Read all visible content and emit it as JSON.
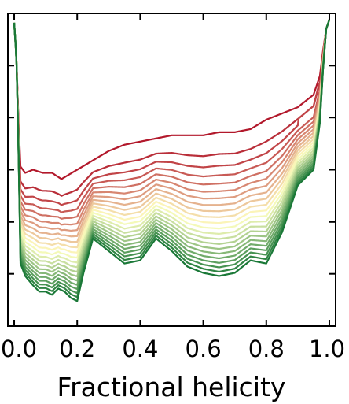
{
  "chart_data": {
    "type": "line",
    "title": "",
    "xlabel": "Fractional helicity",
    "ylabel": "",
    "xlim": [
      -0.02,
      1.02
    ],
    "ylim": [
      0,
      1
    ],
    "grid": false,
    "legend": "none",
    "x_ticks": [
      0.0,
      0.2,
      0.4,
      0.6,
      0.8,
      1.0
    ],
    "x_tick_labels": [
      "0.0",
      "0.2",
      "0.4",
      "0.6",
      "0.8",
      "1.0"
    ],
    "y_ticks": [
      0.0,
      0.167,
      0.333,
      0.5,
      0.667,
      0.833,
      1.0
    ],
    "y_tick_labels": [
      "",
      "",
      "",
      "",
      "",
      "",
      ""
    ],
    "series_count": 22,
    "color_start": "#b2182b",
    "color_mid": "#ffffbf",
    "color_end": "#1a7837",
    "anchors": {
      "top_x": [
        0.0,
        0.007,
        0.013,
        0.02,
        0.035,
        0.06,
        0.09,
        0.12,
        0.15,
        0.2,
        0.25,
        0.3,
        0.35,
        0.4,
        0.45,
        0.5,
        0.55,
        0.6,
        0.65,
        0.7,
        0.75,
        0.8,
        0.85,
        0.9,
        0.95,
        0.97,
        0.98,
        0.99,
        1.0
      ],
      "top_y": [
        0.97,
        0.86,
        0.68,
        0.51,
        0.49,
        0.5,
        0.49,
        0.49,
        0.47,
        0.5,
        0.53,
        0.56,
        0.58,
        0.59,
        0.6,
        0.61,
        0.61,
        0.61,
        0.62,
        0.62,
        0.63,
        0.66,
        0.68,
        0.7,
        0.74,
        0.8,
        0.88,
        0.95,
        0.98
      ],
      "bottom_x": [
        0.0,
        0.007,
        0.013,
        0.02,
        0.035,
        0.06,
        0.08,
        0.1,
        0.12,
        0.14,
        0.16,
        0.18,
        0.2,
        0.22,
        0.25,
        0.3,
        0.35,
        0.4,
        0.45,
        0.5,
        0.55,
        0.6,
        0.65,
        0.7,
        0.75,
        0.8,
        0.85,
        0.9,
        0.95,
        0.97,
        0.98,
        0.99,
        1.0
      ],
      "bottom_y": [
        0.97,
        0.86,
        0.6,
        0.2,
        0.16,
        0.13,
        0.11,
        0.11,
        0.1,
        0.12,
        0.11,
        0.09,
        0.08,
        0.17,
        0.28,
        0.24,
        0.2,
        0.21,
        0.28,
        0.24,
        0.19,
        0.17,
        0.16,
        0.17,
        0.21,
        0.2,
        0.3,
        0.45,
        0.5,
        0.65,
        0.82,
        0.95,
        0.98
      ]
    }
  }
}
